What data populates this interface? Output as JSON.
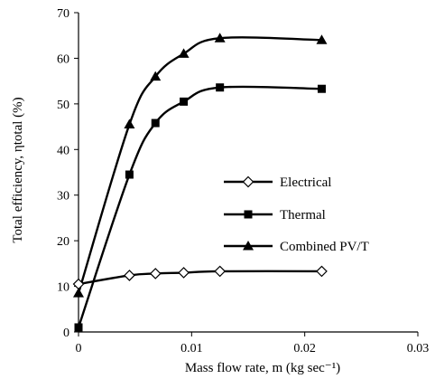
{
  "chart_data": {
    "type": "line",
    "xlabel": "Mass flow rate, m (kg sec⁻¹)",
    "ylabel": "Total efficiency, ηtotal (%)",
    "xlim": [
      0,
      0.03
    ],
    "ylim": [
      0,
      70
    ],
    "xticks": [
      0,
      0.01,
      0.02,
      0.03
    ],
    "xtick_labels": [
      "0",
      "0.01",
      "0.02",
      "0.03"
    ],
    "yticks": [
      0,
      10,
      20,
      30,
      40,
      50,
      60,
      70
    ],
    "ytick_labels": [
      "0",
      "10",
      "20",
      "30",
      "40",
      "50",
      "60",
      "70"
    ],
    "grid": false,
    "legend_position": "center-right",
    "series": [
      {
        "name": "Electrical",
        "marker": "diamond-open",
        "x": [
          0,
          0.0045,
          0.0068,
          0.0093,
          0.0125,
          0.0215
        ],
        "y": [
          10.5,
          12.4,
          12.8,
          13.0,
          13.3,
          13.3
        ]
      },
      {
        "name": "Thermal",
        "marker": "square-filled",
        "x": [
          0,
          0.0045,
          0.0068,
          0.0093,
          0.0125,
          0.0215
        ],
        "y": [
          1.0,
          34.5,
          45.8,
          50.5,
          53.6,
          53.3
        ]
      },
      {
        "name": "Combined PV/T",
        "marker": "triangle-filled",
        "x": [
          0,
          0.0045,
          0.0068,
          0.0093,
          0.0125,
          0.0215
        ],
        "y": [
          8.5,
          45.5,
          56.0,
          61.0,
          64.4,
          64.0
        ]
      }
    ]
  }
}
